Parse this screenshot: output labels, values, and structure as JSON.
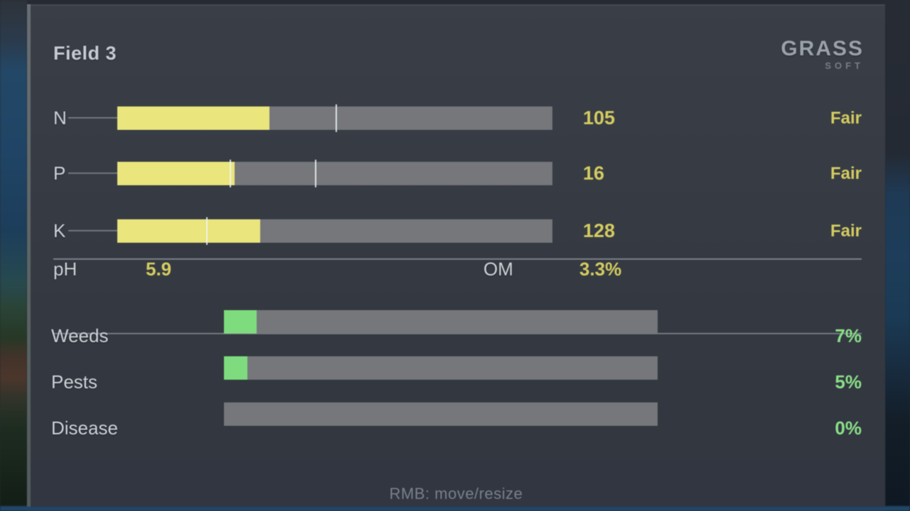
{
  "panel": {
    "title": "Field 3",
    "hint": "RMB: move/resize"
  },
  "logo": {
    "main": "GRASS",
    "sub": "SOFT"
  },
  "nutrients": {
    "rows": [
      {
        "label": "N",
        "value": "105",
        "status": "Fair",
        "fill_pct": 35,
        "ticks": [
          50.2
        ]
      },
      {
        "label": "P",
        "value": "16",
        "status": "Fair",
        "fill_pct": 27,
        "ticks": [
          25.8,
          45.4
        ]
      },
      {
        "label": "K",
        "value": "128",
        "status": "Fair",
        "fill_pct": 32.8,
        "ticks": [
          20.4
        ]
      }
    ]
  },
  "soil": {
    "ph_label": "pH",
    "ph_value": "5.9",
    "om_label": "OM",
    "om_value": "3.3%"
  },
  "health": {
    "rows": [
      {
        "label": "Weeds",
        "value": "7%",
        "fill_pct": 7.5
      },
      {
        "label": "Pests",
        "value": "5%",
        "fill_pct": 5.4
      },
      {
        "label": "Disease",
        "value": "0%",
        "fill_pct": 0
      }
    ]
  },
  "colors": {
    "accent_yellow": "#d4cb60",
    "accent_green": "#8adf88",
    "fill_yellow": "#eae57c",
    "fill_green": "#7edc7e",
    "track_gray": "#75777b"
  }
}
